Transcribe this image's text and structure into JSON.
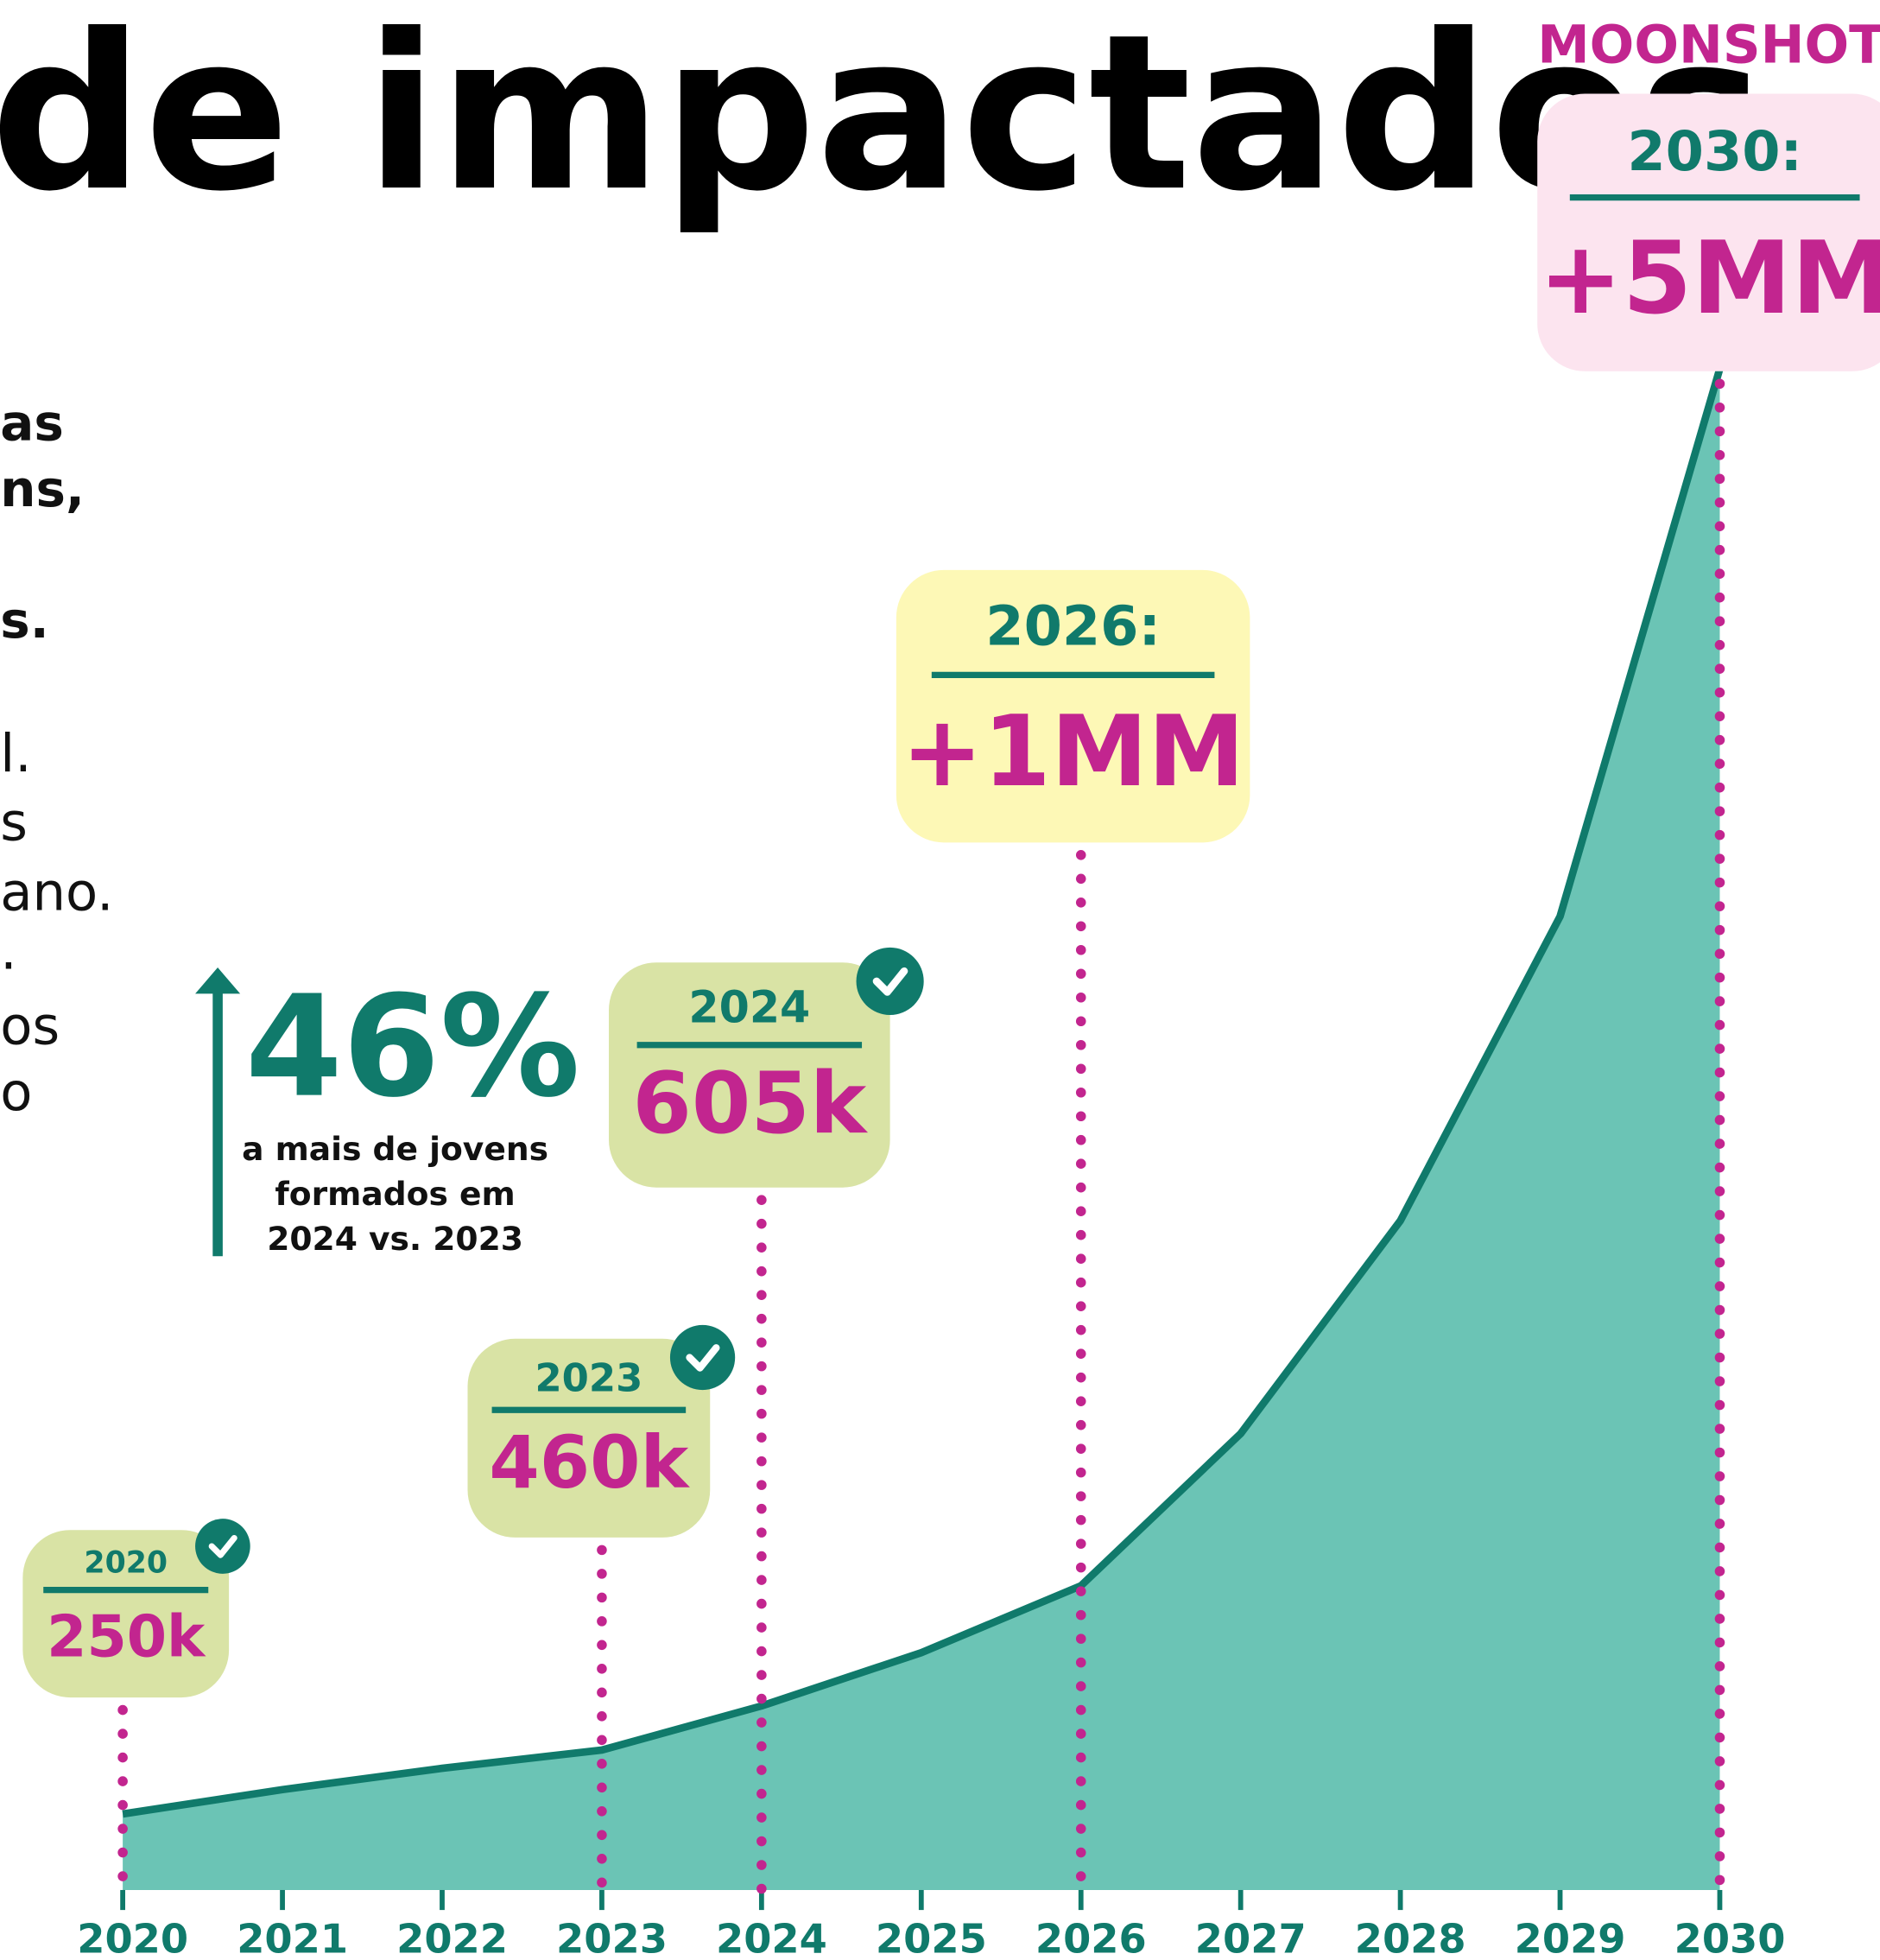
{
  "title": "de impactados",
  "moonshot": "MOONSHOT",
  "side_text": [
    {
      "text": "as",
      "bold": true
    },
    {
      "text": "ns,",
      "bold": true
    },
    {
      "text": "s.",
      "bold": true
    },
    {
      "text": "l.",
      "bold": false
    },
    {
      "text": "s",
      "bold": false
    },
    {
      "text": "ano.",
      "bold": false
    },
    {
      "text": ".",
      "bold": false
    },
    {
      "text": "os",
      "bold": false
    },
    {
      "text": "o",
      "bold": false
    }
  ],
  "callout": {
    "value": "46%",
    "lines": [
      "a mais de jovens",
      "formados em",
      "2024 vs. 2023"
    ]
  },
  "chart_data": {
    "type": "area",
    "categories": [
      "2020",
      "2021",
      "2022",
      "2023",
      "2024",
      "2025",
      "2026",
      "2027",
      "2028",
      "2029",
      "2030"
    ],
    "series": [
      {
        "color": "#6bc4b5",
        "line_color": "#107a6b",
        "values": [
          250000,
          330000,
          400000,
          460000,
          605000,
          780000,
          1000000,
          1500000,
          2200000,
          3200000,
          5000000
        ],
        "value_labels": [
          "250k",
          null,
          null,
          "460k",
          "605k",
          null,
          "+1MM",
          null,
          null,
          null,
          "+5MM"
        ],
        "annotation_titles": [
          "2020",
          null,
          null,
          "2023",
          "2024",
          null,
          "2026:",
          null,
          null,
          null,
          "2030:"
        ]
      }
    ],
    "ylim": [
      0,
      5000000
    ]
  }
}
